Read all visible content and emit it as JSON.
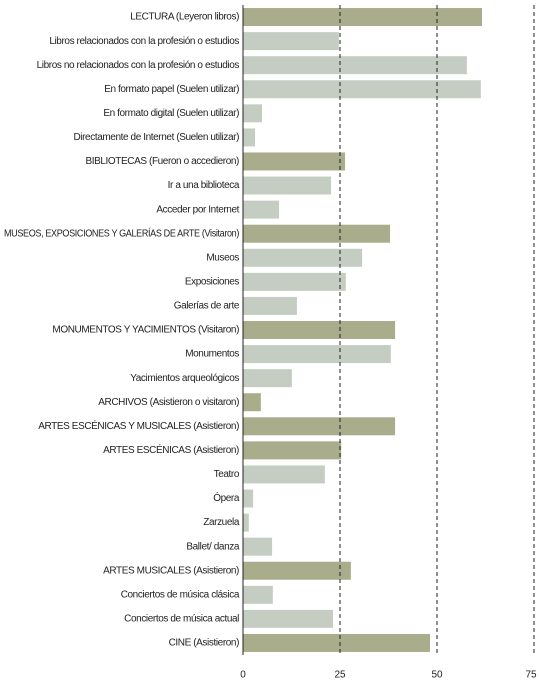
{
  "chart_data": {
    "type": "hbar",
    "categories": [
      "LECTURA (Leyeron libros)",
      "Libros relacionados con la profesión o estudios",
      "Libros no relacionados con la profesión o estudios",
      "En formato papel (Suelen utilizar)",
      "En formato digital (Suelen utilizar)",
      "Directamente de Internet (Suelen utilizar)",
      "BIBLIOTECAS (Fueron o accedieron)",
      "Ir a una biblioteca",
      "Acceder por Internet",
      "MUSEOS, EXPOSICIONES Y GALERÍAS DE ARTE (Visitaron)",
      "Museos",
      "Exposiciones",
      "Galerías de arte",
      "MONUMENTOS Y YACIMIENTOS (Visitaron)",
      "Monumentos",
      "Yacimientos arqueológicos",
      "ARCHIVOS (Asistieron o visitaron)",
      "ARTES ESCÉNICAS Y MUSICALES (Asistieron)",
      "ARTES ESCÉNICAS (Asistieron)",
      "Teatro",
      "Ópera",
      "Zarzuela",
      "Ballet/ danza",
      "ARTES MUSICALES (Asistieron)",
      "Conciertos de música clásica",
      "Conciertos de música actual",
      "CINE (Asistieron)"
    ],
    "values": [
      61.6,
      24.7,
      57.7,
      61.3,
      4.9,
      3.1,
      26.3,
      22.7,
      9.3,
      37.9,
      30.7,
      26.5,
      13.9,
      39.2,
      38.1,
      12.6,
      4.6,
      39.2,
      25.3,
      21.1,
      2.6,
      1.5,
      7.5,
      27.8,
      7.7,
      23.2,
      48.2
    ],
    "colors": [
      "#a9ad8b",
      "#c5cdc3",
      "#c5cdc3",
      "#c5cdc3",
      "#c5cdc3",
      "#c5cdc3",
      "#a9ad8b",
      "#c5cdc3",
      "#c5cdc3",
      "#a9ad8b",
      "#c5cdc3",
      "#c5cdc3",
      "#c5cdc3",
      "#a9ad8b",
      "#c5cdc3",
      "#c5cdc3",
      "#a9ad8b",
      "#a9ad8b",
      "#a9ad8b",
      "#c5cdc3",
      "#c5cdc3",
      "#c5cdc3",
      "#c5cdc3",
      "#a9ad8b",
      "#c5cdc3",
      "#c5cdc3",
      "#a9ad8b"
    ],
    "xlim": [
      0,
      75
    ],
    "xticks": [
      0,
      25,
      50,
      75
    ],
    "grid": true
  }
}
